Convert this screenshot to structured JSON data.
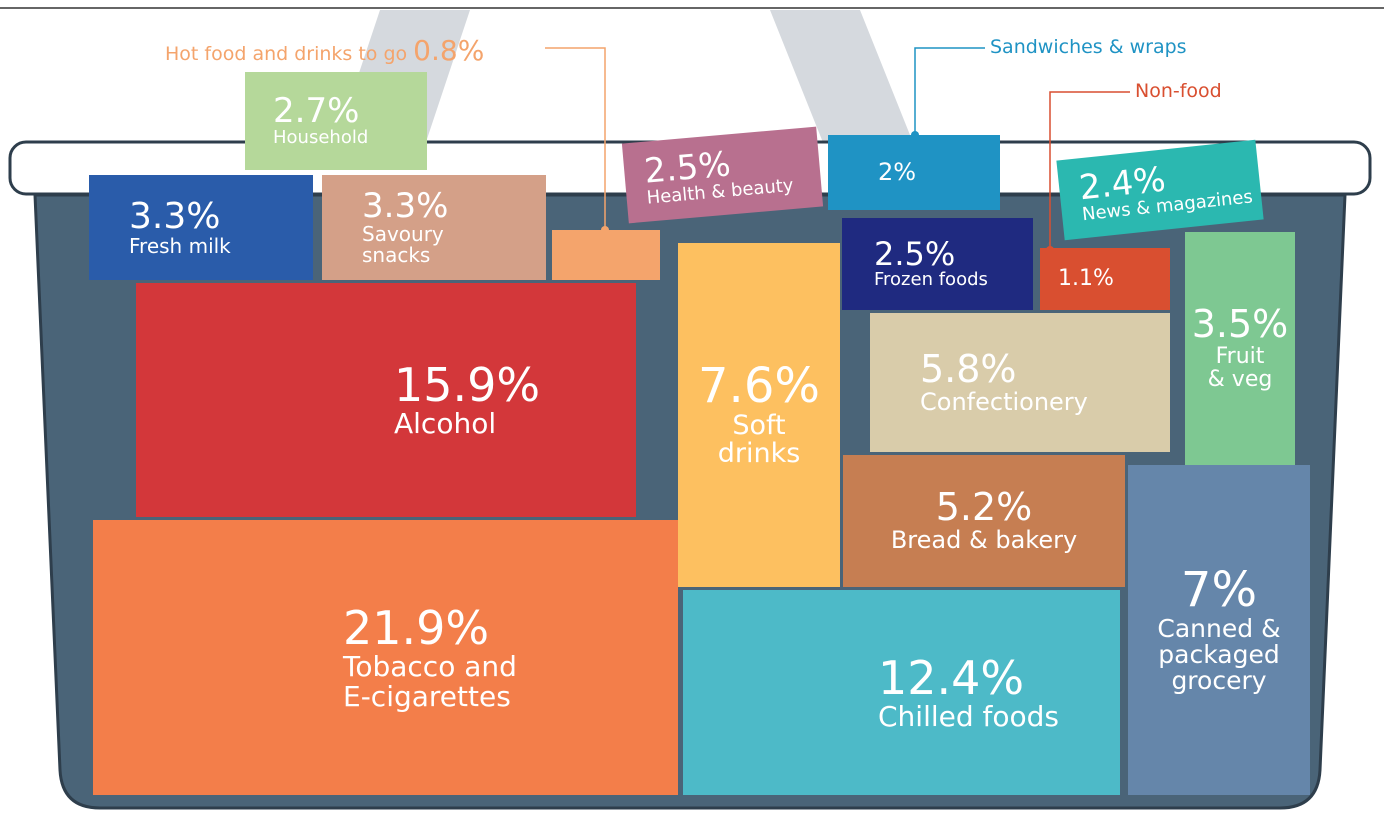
{
  "items": [
    {
      "value": "21.9%",
      "label": "Tobacco and\nE-cigarettes"
    },
    {
      "value": "15.9%",
      "label": "Alcohol"
    },
    {
      "value": "12.4%",
      "label": "Chilled foods"
    },
    {
      "value": "7.6%",
      "label": "Soft\ndrinks"
    },
    {
      "value": "7%",
      "label": "Canned &\npackaged\ngrocery"
    },
    {
      "value": "5.8%",
      "label": "Confectionery"
    },
    {
      "value": "5.2%",
      "label": "Bread & bakery"
    },
    {
      "value": "3.5%",
      "label": "Fruit\n& veg"
    },
    {
      "value": "3.3%",
      "label": "Fresh milk"
    },
    {
      "value": "3.3%",
      "label": "Savoury\nsnacks"
    },
    {
      "value": "2.7%",
      "label": "Household"
    },
    {
      "value": "2.5%",
      "label": "Health & beauty"
    },
    {
      "value": "2.5%",
      "label": "Frozen foods"
    },
    {
      "value": "2.4%",
      "label": "News & magazines"
    },
    {
      "value": "2%",
      "label": "Sandwiches & wraps"
    },
    {
      "value": "1.1%",
      "label": "Non-food"
    },
    {
      "value": "0.8%",
      "label": "Hot food and drinks to go"
    }
  ]
}
